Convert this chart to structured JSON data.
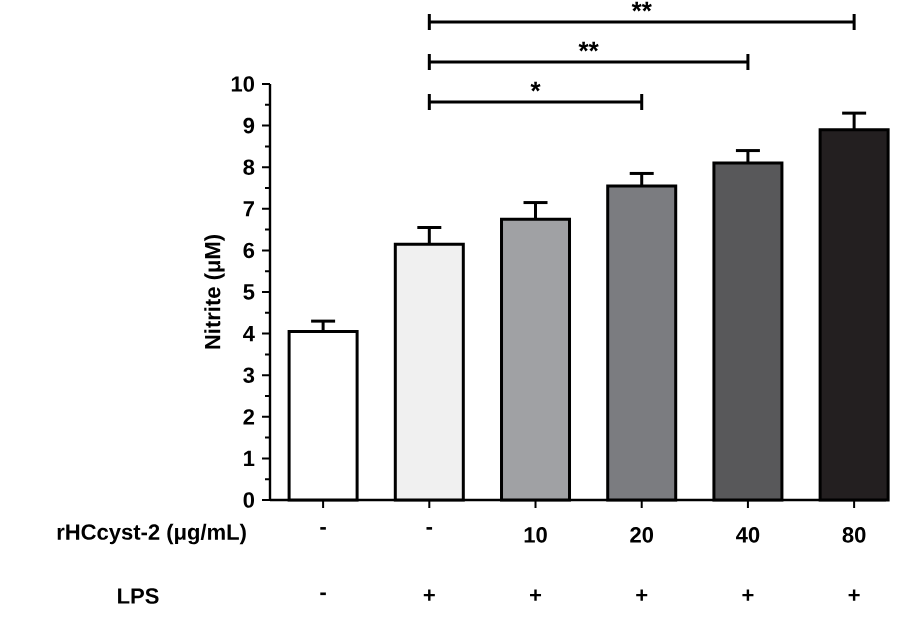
{
  "chart_data": {
    "type": "bar",
    "categories": [
      "-",
      "-",
      "10",
      "20",
      "40",
      "80"
    ],
    "values": [
      4.05,
      6.15,
      6.75,
      7.55,
      8.1,
      8.9
    ],
    "errors": [
      0.25,
      0.4,
      0.4,
      0.3,
      0.3,
      0.4
    ],
    "colors": [
      "#ffffff",
      "#f0f0f0",
      "#a0a1a4",
      "#7b7c80",
      "#58585a",
      "#231f20"
    ],
    "ylim": [
      0,
      10
    ],
    "yticks": [
      0,
      1,
      2,
      3,
      4,
      5,
      6,
      7,
      8,
      9,
      10
    ],
    "ylabel": "Nitrite (μM)",
    "xlabel": "rHCcyst-2 (μg/mL)",
    "annotations": [
      "*",
      "**",
      "**",
      "LPS",
      "-",
      "+",
      "+",
      "+",
      "+",
      "+"
    ],
    "grid": false
  }
}
